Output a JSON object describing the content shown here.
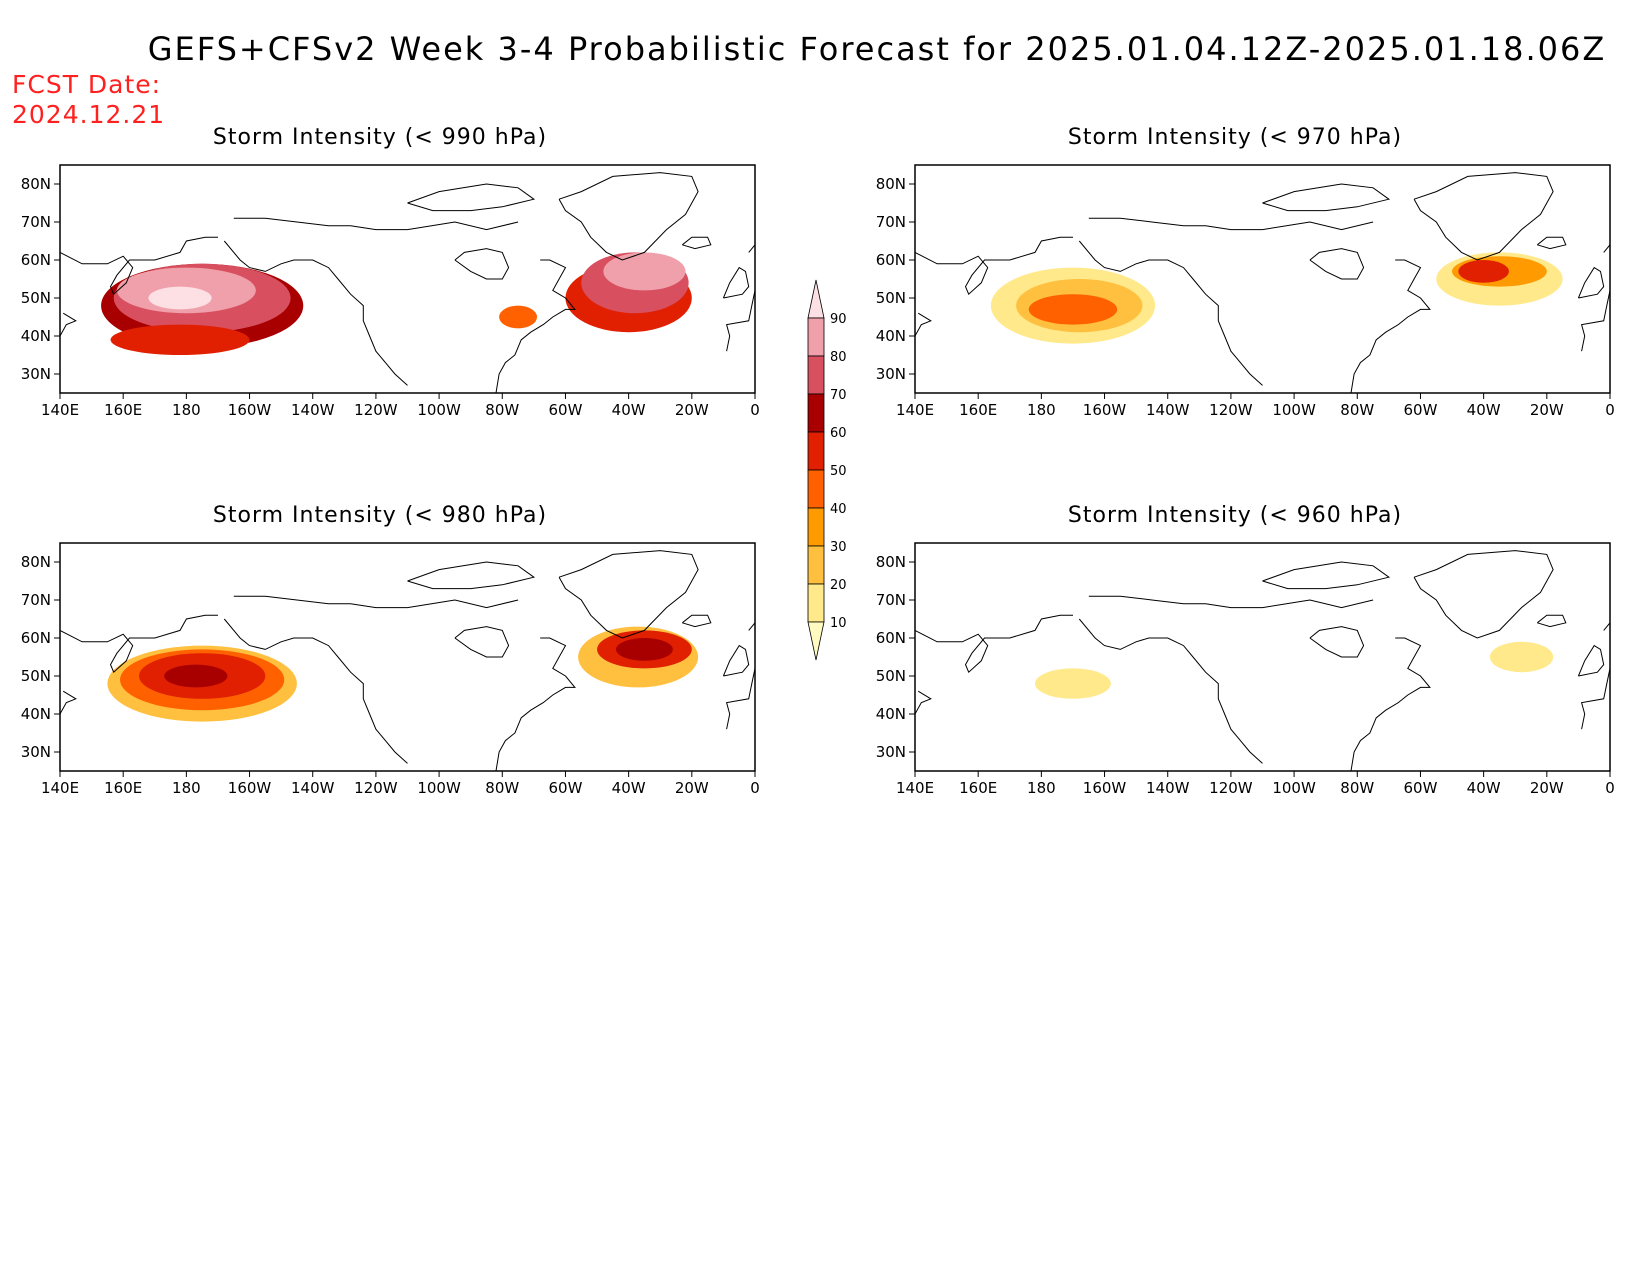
{
  "main_title": "GEFS+CFSv2 Week 3-4 Probabilistic Forecast for 2025.01.04.12Z-2025.01.18.06Z",
  "fcst_date": {
    "label": "FCST Date:",
    "value": "2024.12.21"
  },
  "colorbar": {
    "levels": [
      "10",
      "20",
      "30",
      "40",
      "50",
      "60",
      "70",
      "80",
      "90"
    ],
    "colors": [
      "#fffbc0",
      "#ffe98a",
      "#ffc040",
      "#ff9a00",
      "#ff6000",
      "#e02000",
      "#a80000",
      "#d85060",
      "#f0a0aa",
      "#fde0e4"
    ]
  },
  "axes": {
    "lon_labels": [
      "140E",
      "160E",
      "180",
      "160W",
      "140W",
      "120W",
      "100W",
      "80W",
      "60W",
      "40W",
      "20W",
      "0"
    ],
    "lat_labels": [
      "80N",
      "70N",
      "60N",
      "50N",
      "40N",
      "30N"
    ],
    "lon_range": [
      140,
      360
    ],
    "lat_range": [
      25,
      85
    ]
  },
  "panels": [
    {
      "title": "Storm Intensity (< 990 hPa)",
      "blobs": [
        {
          "lon": 185,
          "lat": 48,
          "rx": 32,
          "ry": 11,
          "level": 6
        },
        {
          "lon": 185,
          "lat": 50,
          "rx": 28,
          "ry": 9,
          "level": 7
        },
        {
          "lon": 180,
          "lat": 52,
          "rx": 22,
          "ry": 6,
          "level": 8
        },
        {
          "lon": 178,
          "lat": 50,
          "rx": 10,
          "ry": 3,
          "level": 9
        },
        {
          "lon": 178,
          "lat": 39,
          "rx": 22,
          "ry": 4,
          "level": 5
        },
        {
          "lon": 320,
          "lat": 50,
          "rx": 20,
          "ry": 9,
          "level": 5
        },
        {
          "lon": 322,
          "lat": 54,
          "rx": 17,
          "ry": 8,
          "level": 7
        },
        {
          "lon": 325,
          "lat": 57,
          "rx": 13,
          "ry": 5,
          "level": 8
        },
        {
          "lon": 285,
          "lat": 45,
          "rx": 6,
          "ry": 3,
          "level": 4
        }
      ]
    },
    {
      "title": "Storm Intensity (< 970 hPa)",
      "blobs": [
        {
          "lon": 190,
          "lat": 48,
          "rx": 26,
          "ry": 10,
          "level": 1
        },
        {
          "lon": 192,
          "lat": 48,
          "rx": 20,
          "ry": 7,
          "level": 2
        },
        {
          "lon": 190,
          "lat": 47,
          "rx": 14,
          "ry": 4,
          "level": 4
        },
        {
          "lon": 325,
          "lat": 55,
          "rx": 20,
          "ry": 7,
          "level": 1
        },
        {
          "lon": 325,
          "lat": 57,
          "rx": 15,
          "ry": 4,
          "level": 3
        },
        {
          "lon": 320,
          "lat": 57,
          "rx": 8,
          "ry": 3,
          "level": 5
        }
      ]
    },
    {
      "title": "Storm Intensity (< 980 hPa)",
      "blobs": [
        {
          "lon": 185,
          "lat": 48,
          "rx": 30,
          "ry": 10,
          "level": 2
        },
        {
          "lon": 185,
          "lat": 49,
          "rx": 26,
          "ry": 8,
          "level": 4
        },
        {
          "lon": 185,
          "lat": 50,
          "rx": 20,
          "ry": 6,
          "level": 5
        },
        {
          "lon": 183,
          "lat": 50,
          "rx": 10,
          "ry": 3,
          "level": 6
        },
        {
          "lon": 323,
          "lat": 55,
          "rx": 19,
          "ry": 8,
          "level": 2
        },
        {
          "lon": 325,
          "lat": 57,
          "rx": 15,
          "ry": 5,
          "level": 5
        },
        {
          "lon": 325,
          "lat": 57,
          "rx": 9,
          "ry": 3,
          "level": 6
        }
      ]
    },
    {
      "title": "Storm Intensity (< 960 hPa)",
      "blobs": [
        {
          "lon": 190,
          "lat": 48,
          "rx": 12,
          "ry": 4,
          "level": 1
        },
        {
          "lon": 332,
          "lat": 55,
          "rx": 10,
          "ry": 4,
          "level": 1
        }
      ]
    }
  ]
}
